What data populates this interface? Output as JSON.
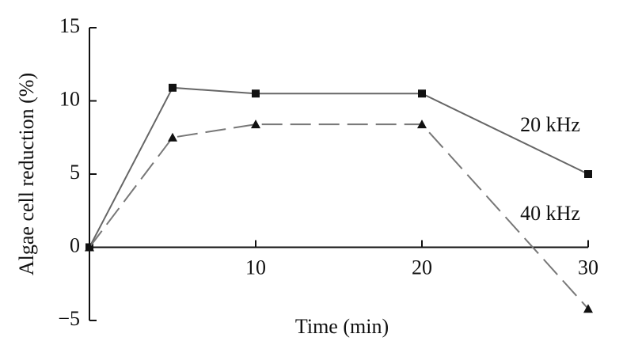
{
  "chart_data": {
    "type": "line",
    "x_label": "Time (min)",
    "y_label": "Algae cell reduction (%)",
    "x": [
      0,
      5,
      10,
      20,
      30
    ],
    "series": [
      {
        "name": "20 kHz",
        "color": "#666666",
        "marker_color": "#111111",
        "marker": "square",
        "dash": "solid",
        "values": [
          0,
          10.9,
          10.5,
          10.5,
          5
        ]
      },
      {
        "name": "40 kHz",
        "color": "#777777",
        "marker_color": "#111111",
        "marker": "triangle",
        "dash": "dashed",
        "values": [
          0,
          7.5,
          8.4,
          8.4,
          -4.2
        ]
      }
    ],
    "xlim": [
      0,
      30
    ],
    "xticks": [
      10,
      20,
      30
    ],
    "ylim": [
      -5,
      15
    ],
    "yticks": [
      {
        "value": -5,
        "label": "−5"
      },
      0,
      5,
      10,
      15
    ],
    "grid": false
  }
}
